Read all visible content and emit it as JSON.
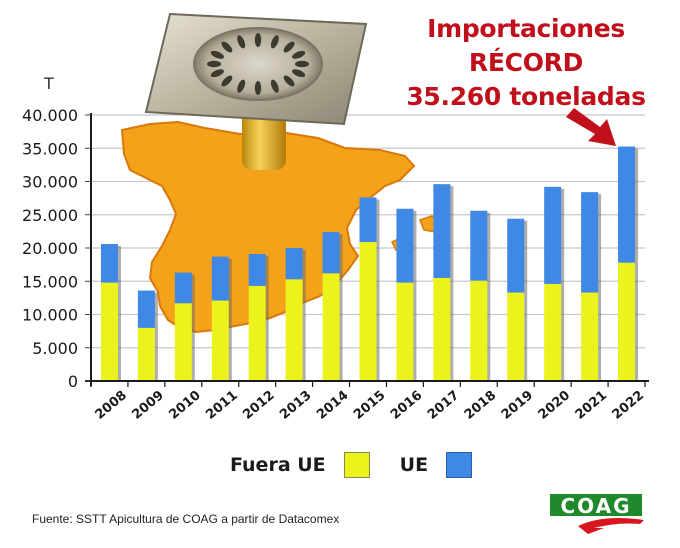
{
  "headline": {
    "line1": "Importaciones",
    "line2": "RÉCORD",
    "line3": "35.260 toneladas"
  },
  "unit_label": "T",
  "legend": [
    {
      "label": "Fuera UE",
      "color": "#ecf21b"
    },
    {
      "label": "UE",
      "color": "#3f88e6"
    }
  ],
  "source": "Fuente: SSTT Apicultura de COAG a partir de Datacomex",
  "logo": {
    "text": "COAG",
    "color": "#1e8a2c",
    "accent": "#d7161f"
  },
  "colors": {
    "fuera_ue": "#ecf21b",
    "ue": "#3f88e6",
    "headline": "#c0101b",
    "arrow": "#c0101b",
    "map": "#f4a21a",
    "grid": "#c8c8c8"
  },
  "chart_data": {
    "type": "bar",
    "stacked": true,
    "title": "Importaciones RÉCORD 35.260 toneladas",
    "xlabel": "",
    "ylabel": "T",
    "ylim": [
      0,
      40000
    ],
    "yticks": [
      0,
      5000,
      10000,
      15000,
      20000,
      25000,
      30000,
      35000,
      40000
    ],
    "ytick_labels": [
      "0",
      "5.000",
      "10.000",
      "15.000",
      "20.000",
      "25.000",
      "30.000",
      "35.000",
      "40.000"
    ],
    "grid": true,
    "legend_position": "bottom",
    "categories": [
      "2008",
      "2009",
      "2010",
      "2011",
      "2012",
      "2013",
      "2014",
      "2015",
      "2016",
      "2017",
      "2018",
      "2019",
      "2020",
      "2021",
      "2022"
    ],
    "series": [
      {
        "name": "Fuera UE",
        "color": "#ecf21b",
        "values": [
          14800,
          8000,
          11700,
          12100,
          14300,
          15300,
          16200,
          20900,
          14800,
          15500,
          15100,
          13300,
          14600,
          13300,
          17800
        ]
      },
      {
        "name": "UE",
        "color": "#3f88e6",
        "values": [
          5800,
          5600,
          4600,
          6600,
          4800,
          4700,
          6200,
          6700,
          11100,
          14100,
          10500,
          11100,
          14600,
          15100,
          17460
        ]
      }
    ],
    "totals": [
      20600,
      13600,
      16300,
      18700,
      19100,
      20000,
      22400,
      27600,
      25900,
      29600,
      25600,
      24400,
      29200,
      28400,
      35260
    ],
    "annotations": [
      {
        "text": "Importaciones RÉCORD 35.260 toneladas",
        "target": "2022",
        "arrow": true
      }
    ]
  }
}
